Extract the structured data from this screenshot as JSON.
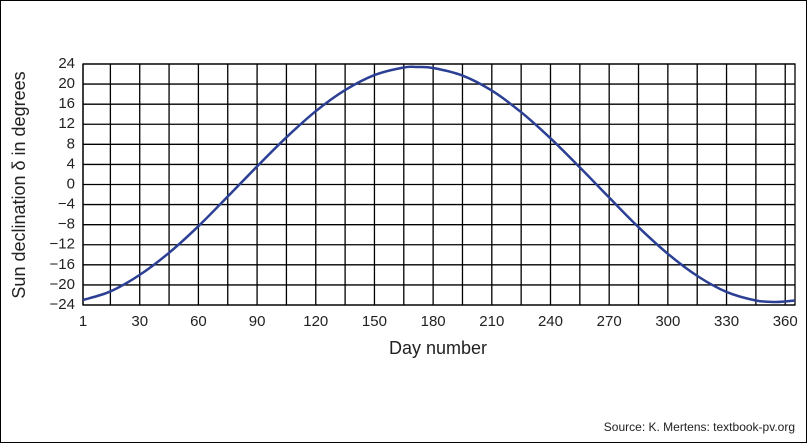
{
  "chart_data": {
    "type": "line",
    "y_label": "Sun declination δ in degrees",
    "x_label": "Day number",
    "source": "Source: K. Mertens: textbook-pv.org",
    "x": [
      1,
      15,
      30,
      45,
      60,
      75,
      90,
      105,
      120,
      135,
      150,
      165,
      172,
      180,
      195,
      210,
      225,
      240,
      255,
      270,
      285,
      300,
      315,
      330,
      345,
      355,
      365
    ],
    "series": [
      {
        "color": "#2b3f95",
        "values": [
          -23.0,
          -21.3,
          -18.0,
          -13.6,
          -8.3,
          -2.4,
          3.6,
          9.4,
          14.6,
          18.8,
          21.8,
          23.3,
          23.4,
          23.2,
          21.7,
          18.7,
          14.4,
          9.2,
          3.4,
          -2.6,
          -8.5,
          -13.8,
          -18.2,
          -21.4,
          -23.1,
          -23.4,
          -23.1
        ]
      }
    ],
    "xlim": [
      1,
      365
    ],
    "xticks": [
      1,
      30,
      60,
      90,
      120,
      150,
      180,
      210,
      240,
      270,
      300,
      330,
      360
    ],
    "x_minor_ticks": [
      15,
      45,
      75,
      105,
      135,
      165,
      195,
      225,
      255,
      285,
      315,
      345
    ],
    "ylim": [
      -24,
      24
    ],
    "yticks": [
      {
        "value": -24,
        "label": "−24"
      },
      {
        "value": -20,
        "label": "−20"
      },
      {
        "value": -16,
        "label": "−16"
      },
      {
        "value": -12,
        "label": "−12"
      },
      {
        "value": -8,
        "label": "−8"
      },
      {
        "value": -4,
        "label": "−4"
      },
      0,
      4,
      8,
      12,
      16,
      20,
      24
    ],
    "grid": true
  }
}
